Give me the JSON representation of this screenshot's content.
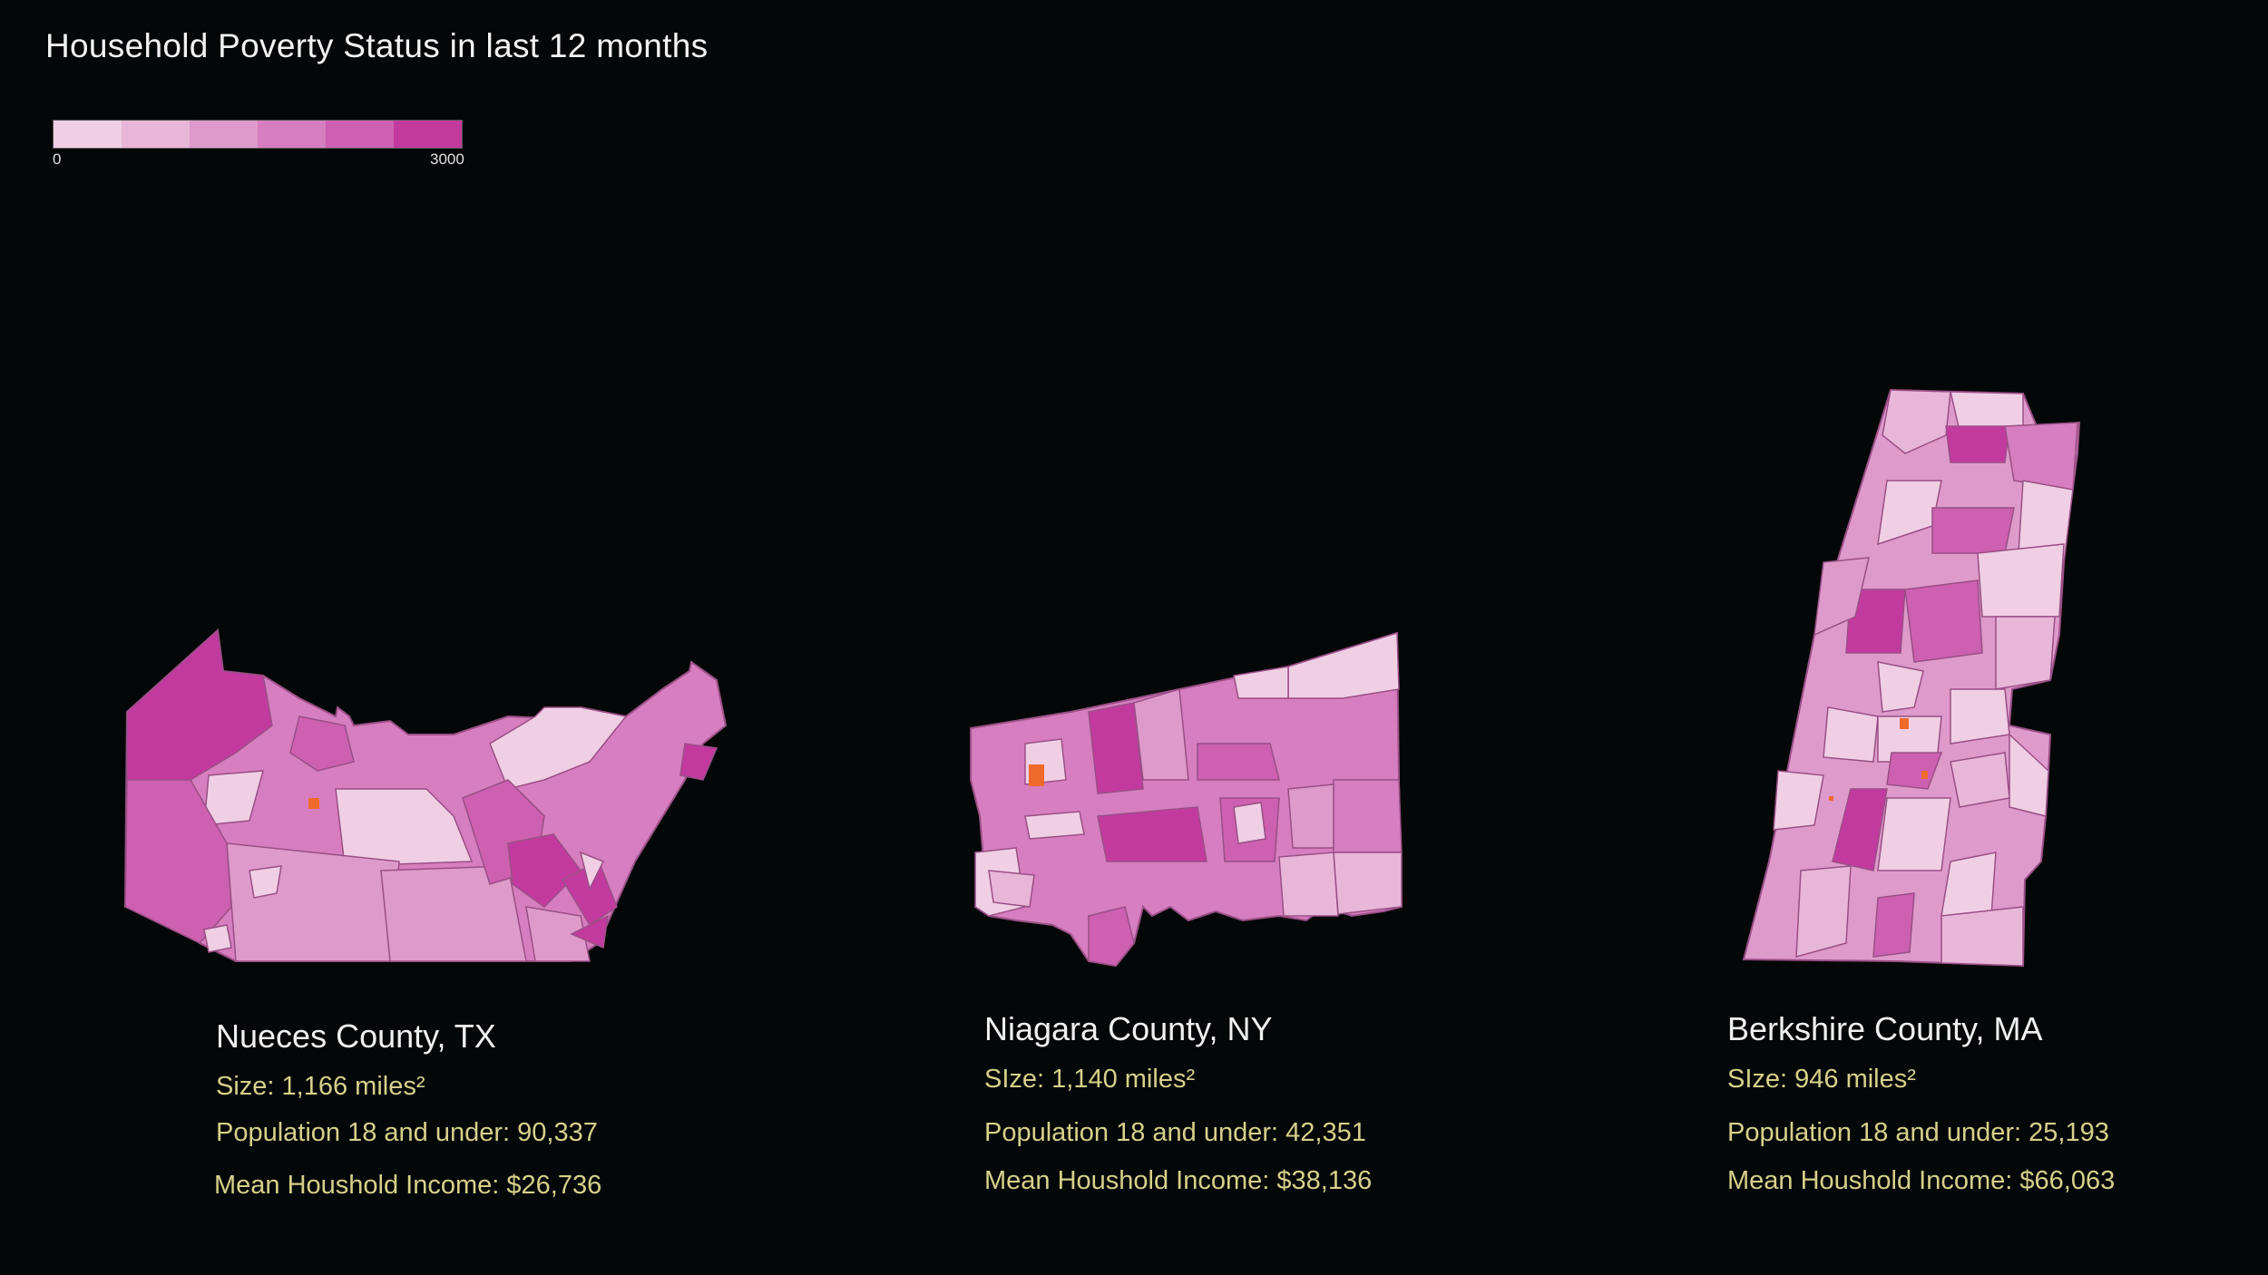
{
  "title": "Household Poverty Status in last 12 months",
  "legend": {
    "min_label": "0",
    "max_label": "3000",
    "colors": [
      "#f0cfe5",
      "#e8b6d9",
      "#de9acb",
      "#d67ebf",
      "#cd60b1",
      "#c33a9f"
    ]
  },
  "counties": [
    {
      "name": "Nueces County, TX",
      "size": "Size: 1,166 miles²",
      "population": "Population 18 and under: 90,337",
      "income": "Mean Houshold Income: $26,736"
    },
    {
      "name": "Niagara County, NY",
      "size": "SIze: 1,140 miles²",
      "population": "Population 18 and under:  42,351",
      "income": "Mean Houshold Income: $38,136"
    },
    {
      "name": "Berkshire County, MA",
      "size": "SIze: 946 miles²",
      "population": "Population 18 and under:  25,193",
      "income": "Mean Houshold Income: $66,063"
    }
  ],
  "colors": {
    "background": "#040707",
    "title": "#f2f2f2",
    "stats": "#d6d08a",
    "highlight": "#f06a2c"
  }
}
